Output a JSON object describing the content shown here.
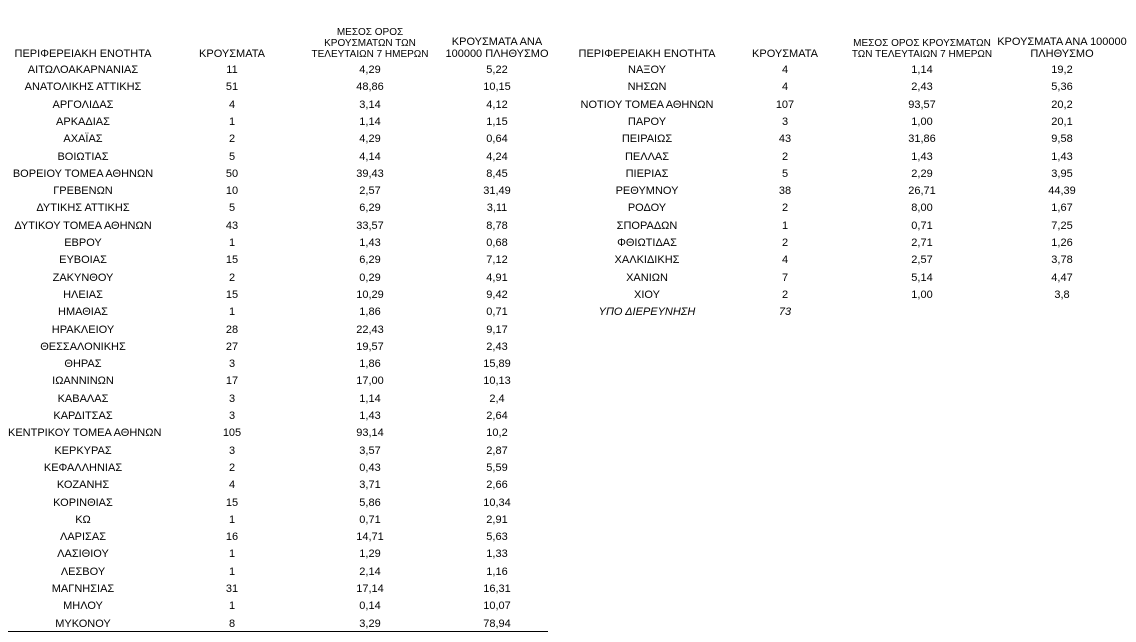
{
  "tables": [
    {
      "header": [
        "ΠΕΡΙΦΕΡΕΙΑΚΗ ΕΝΟΤΗΤΑ",
        "ΚΡΟΥΣΜΑΤΑ",
        "ΜΕΣΟΣ ΟΡΟΣ ΚΡΟΥΣΜΑΤΩΝ ΤΩΝ ΤΕΛΕΥΤΑΙΩΝ 7 ΗΜΕΡΩΝ",
        "ΚΡΟΥΣΜΑΤΑ ΑΝΑ 100000 ΠΛΗΘΥΣΜΟ"
      ],
      "rows": [
        [
          "ΑΙΤΩΛΟΑΚΑΡΝΑΝΙΑΣ",
          "11",
          "4,29",
          "5,22"
        ],
        [
          "ΑΝΑΤΟΛΙΚΗΣ ΑΤΤΙΚΗΣ",
          "51",
          "48,86",
          "10,15"
        ],
        [
          "ΑΡΓΟΛΙΔΑΣ",
          "4",
          "3,14",
          "4,12"
        ],
        [
          "ΑΡΚΑΔΙΑΣ",
          "1",
          "1,14",
          "1,15"
        ],
        [
          "ΑΧΑΪΑΣ",
          "2",
          "4,29",
          "0,64"
        ],
        [
          "ΒΟΙΩΤΙΑΣ",
          "5",
          "4,14",
          "4,24"
        ],
        [
          "ΒΟΡΕΙΟΥ ΤΟΜΕΑ ΑΘΗΝΩΝ",
          "50",
          "39,43",
          "8,45"
        ],
        [
          "ΓΡΕΒΕΝΩΝ",
          "10",
          "2,57",
          "31,49"
        ],
        [
          "ΔΥΤΙΚΗΣ ΑΤΤΙΚΗΣ",
          "5",
          "6,29",
          "3,11"
        ],
        [
          "ΔΥΤΙΚΟΥ ΤΟΜΕΑ ΑΘΗΝΩΝ",
          "43",
          "33,57",
          "8,78"
        ],
        [
          "ΕΒΡΟΥ",
          "1",
          "1,43",
          "0,68"
        ],
        [
          "ΕΥΒΟΙΑΣ",
          "15",
          "6,29",
          "7,12"
        ],
        [
          "ΖΑΚΥΝΘΟΥ",
          "2",
          "0,29",
          "4,91"
        ],
        [
          "ΗΛΕΙΑΣ",
          "15",
          "10,29",
          "9,42"
        ],
        [
          "ΗΜΑΘΙΑΣ",
          "1",
          "1,86",
          "0,71"
        ],
        [
          "ΗΡΑΚΛΕΙΟΥ",
          "28",
          "22,43",
          "9,17"
        ],
        [
          "ΘΕΣΣΑΛΟΝΙΚΗΣ",
          "27",
          "19,57",
          "2,43"
        ],
        [
          "ΘΗΡΑΣ",
          "3",
          "1,86",
          "15,89"
        ],
        [
          "ΙΩΑΝΝΙΝΩΝ",
          "17",
          "17,00",
          "10,13"
        ],
        [
          "ΚΑΒΑΛΑΣ",
          "3",
          "1,14",
          "2,4"
        ],
        [
          "ΚΑΡΔΙΤΣΑΣ",
          "3",
          "1,43",
          "2,64"
        ],
        [
          "ΚΕΝΤΡΙΚΟΥ ΤΟΜΕΑ ΑΘΗΝΩΝ",
          "105",
          "93,14",
          "10,2"
        ],
        [
          "ΚΕΡΚΥΡΑΣ",
          "3",
          "3,57",
          "2,87"
        ],
        [
          "ΚΕΦΑΛΛΗΝΙΑΣ",
          "2",
          "0,43",
          "5,59"
        ],
        [
          "ΚΟΖΑΝΗΣ",
          "4",
          "3,71",
          "2,66"
        ],
        [
          "ΚΟΡΙΝΘΙΑΣ",
          "15",
          "5,86",
          "10,34"
        ],
        [
          "ΚΩ",
          "1",
          "0,71",
          "2,91"
        ],
        [
          "ΛΑΡΙΣΑΣ",
          "16",
          "14,71",
          "5,63"
        ],
        [
          "ΛΑΣΙΘΙΟΥ",
          "1",
          "1,29",
          "1,33"
        ],
        [
          "ΛΕΣΒΟΥ",
          "1",
          "2,14",
          "1,16"
        ],
        [
          "ΜΑΓΝΗΣΙΑΣ",
          "31",
          "17,14",
          "16,31"
        ],
        [
          "ΜΗΛΟΥ",
          "1",
          "0,14",
          "10,07"
        ],
        [
          "ΜΥΚΟΝΟΥ",
          "8",
          "3,29",
          "78,94"
        ]
      ]
    },
    {
      "header": [
        "ΠΕΡΙΦΕΡΕΙΑΚΗ ΕΝΟΤΗΤΑ",
        "ΚΡΟΥΣΜΑΤΑ",
        "ΜΕΣΟΣ ΟΡΟΣ ΚΡΟΥΣΜΑΤΩΝ ΤΩΝ ΤΕΛΕΥΤΑΙΩΝ 7 ΗΜΕΡΩΝ",
        "ΚΡΟΥΣΜΑΤΑ ΑΝΑ 100000 ΠΛΗΘΥΣΜΟ"
      ],
      "rows": [
        [
          "ΝΑΞΟΥ",
          "4",
          "1,14",
          "19,2"
        ],
        [
          "ΝΗΣΩΝ",
          "4",
          "2,43",
          "5,36"
        ],
        [
          "ΝΟΤΙΟΥ ΤΟΜΕΑ ΑΘΗΝΩΝ",
          "107",
          "93,57",
          "20,2"
        ],
        [
          "ΠΑΡΟΥ",
          "3",
          "1,00",
          "20,1"
        ],
        [
          "ΠΕΙΡΑΙΩΣ",
          "43",
          "31,86",
          "9,58"
        ],
        [
          "ΠΕΛΛΑΣ",
          "2",
          "1,43",
          "1,43"
        ],
        [
          "ΠΙΕΡΙΑΣ",
          "5",
          "2,29",
          "3,95"
        ],
        [
          "ΡΕΘΥΜΝΟΥ",
          "38",
          "26,71",
          "44,39"
        ],
        [
          "ΡΟΔΟΥ",
          "2",
          "8,00",
          "1,67"
        ],
        [
          "ΣΠΟΡΑΔΩΝ",
          "1",
          "0,71",
          "7,25"
        ],
        [
          "ΦΘΙΩΤΙΔΑΣ",
          "2",
          "2,71",
          "1,26"
        ],
        [
          "ΧΑΛΚΙΔΙΚΗΣ",
          "4",
          "2,57",
          "3,78"
        ],
        [
          "ΧΑΝΙΩΝ",
          "7",
          "5,14",
          "4,47"
        ],
        [
          "ΧΙΟΥ",
          "2",
          "1,00",
          "3,8"
        ],
        [
          "ΥΠΟ ΔΙΕΡΕΥΝΗΣΗ",
          "73"
        ]
      ]
    }
  ]
}
